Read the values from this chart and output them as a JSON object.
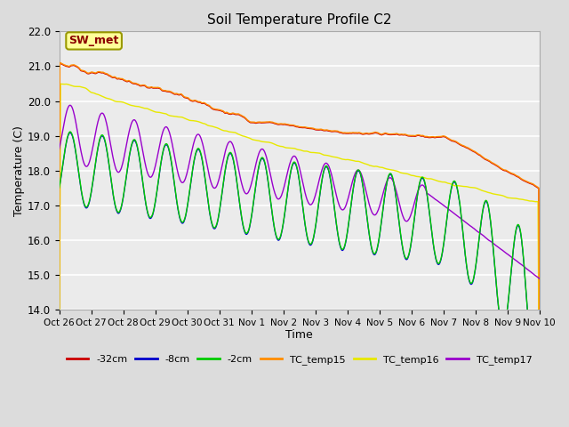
{
  "title": "Soil Temperature Profile C2",
  "xlabel": "Time",
  "ylabel": "Temperature (C)",
  "ylim": [
    14.0,
    22.0
  ],
  "yticks": [
    14.0,
    15.0,
    16.0,
    17.0,
    18.0,
    19.0,
    20.0,
    21.0,
    22.0
  ],
  "xtick_labels": [
    "Oct 26",
    "Oct 27",
    "Oct 28",
    "Oct 29",
    "Oct 30",
    "Oct 31",
    "Nov 1",
    "Nov 2",
    "Nov 3",
    "Nov 4",
    "Nov 5",
    "Nov 6",
    "Nov 7",
    "Nov 8",
    "Nov 9",
    "Nov 10"
  ],
  "background_color": "#dcdcdc",
  "plot_bg_color": "#ebebeb",
  "grid_color": "#ffffff",
  "series": {
    "TC_temp15": {
      "color": "#ff8c00"
    },
    "TC_temp16": {
      "color": "#e8e800"
    },
    "TC_temp17": {
      "color": "#9900cc"
    },
    "neg2cm": {
      "color": "#00cc00"
    },
    "neg8cm": {
      "color": "#0000cc"
    },
    "neg32cm": {
      "color": "#cc0000"
    }
  },
  "annotation": {
    "text": "SW_met",
    "fontsize": 9,
    "text_color": "#8b0000",
    "box_facecolor": "#ffff99",
    "box_edgecolor": "#999900"
  },
  "legend_labels": [
    "-32cm",
    "-8cm",
    "-2cm",
    "TC_temp15",
    "TC_temp16",
    "TC_temp17"
  ],
  "legend_colors": [
    "#cc0000",
    "#0000cc",
    "#00cc00",
    "#ff8c00",
    "#e8e800",
    "#9900cc"
  ],
  "figsize": [
    6.4,
    4.8
  ],
  "dpi": 100
}
